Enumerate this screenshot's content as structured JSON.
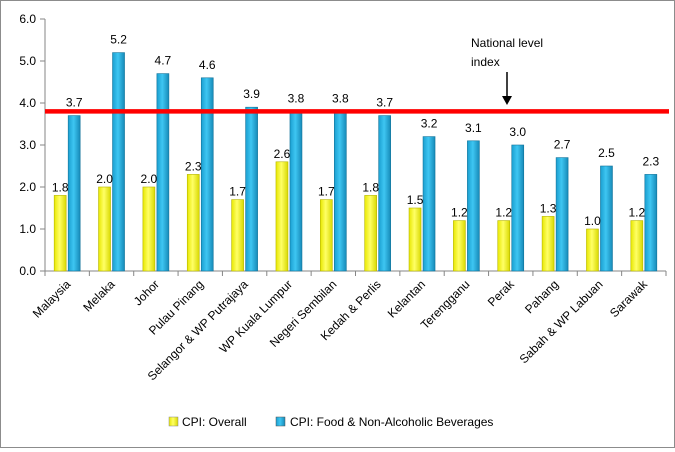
{
  "chart_data": {
    "type": "bar",
    "title": "",
    "xlabel": "",
    "ylabel": "",
    "ylim": [
      0,
      6
    ],
    "yticks": [
      "0.0",
      "1.0",
      "2.0",
      "3.0",
      "4.0",
      "5.0",
      "6.0"
    ],
    "categories": [
      "Malaysia",
      "Melaka",
      "Johor",
      "Pulau Pinang",
      "Selangor & WP Putrajaya",
      "WP Kuala Lumpur",
      "Negeri Sembilan",
      "Kedah & Perlis",
      "Kelantan",
      "Terengganu",
      "Perak",
      "Pahang",
      "Sabah & WP Labuan",
      "Sarawak"
    ],
    "series": [
      {
        "name": "CPI: Overall",
        "color": "#ffff00",
        "values": [
          1.8,
          2.0,
          2.0,
          2.3,
          1.7,
          2.6,
          1.7,
          1.8,
          1.5,
          1.2,
          1.2,
          1.3,
          1.0,
          1.2
        ],
        "labels": [
          "1.8",
          "2.0",
          "2.0",
          "2.3",
          "1.7",
          "2.6",
          "1.7",
          "1.8",
          "1.5",
          "1.2",
          "1.2",
          "1.3",
          "1.0",
          "1.2"
        ]
      },
      {
        "name": "CPI: Food & Non-Alcoholic Beverages",
        "color": "#1fb4e6",
        "values": [
          3.7,
          5.2,
          4.7,
          4.6,
          3.9,
          3.8,
          3.8,
          3.7,
          3.2,
          3.1,
          3.0,
          2.7,
          2.5,
          2.3
        ],
        "labels": [
          "3.7",
          "5.2",
          "4.7",
          "4.6",
          "3.9",
          "3.8",
          "3.8",
          "3.7",
          "3.2",
          "3.1",
          "3.0",
          "2.7",
          "2.5",
          "2.3"
        ]
      }
    ],
    "reference_line": {
      "value": 3.8,
      "color": "#ff0000"
    },
    "annotation": {
      "lines": [
        "National level",
        "index"
      ]
    },
    "legend_position": "bottom",
    "grid": false
  }
}
